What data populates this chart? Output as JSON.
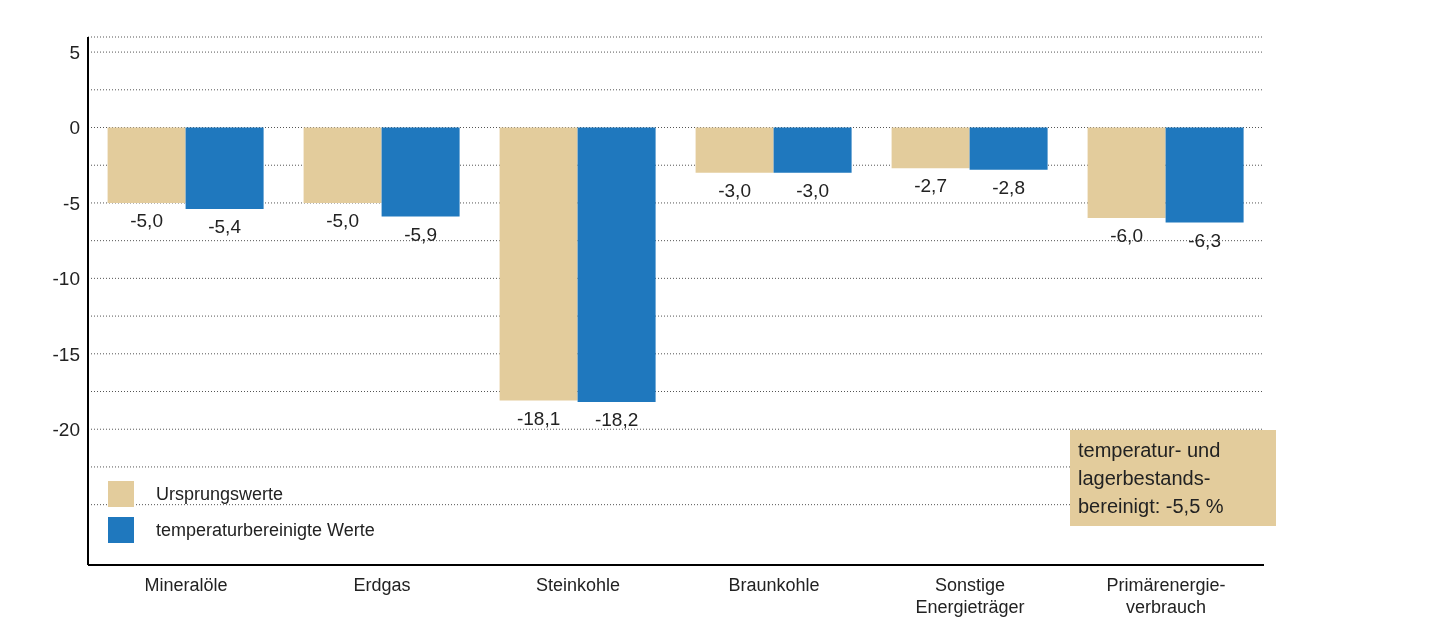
{
  "chart_data": {
    "type": "bar",
    "categories": [
      "Mineralöle",
      "Erdgas",
      "Steinkohle",
      "Braunkohle",
      "Sonstige Energieträger",
      "Primärenergie-verbrauch"
    ],
    "series": [
      {
        "name": "Ursprungswerte",
        "color": "#e3cc9c",
        "values": [
          -5.0,
          -5.0,
          -18.1,
          -3.0,
          -2.7,
          -6.0
        ],
        "value_labels": [
          "-5,0",
          "-5,0",
          "-18,1",
          "-3,0",
          "-2,7",
          "-6,0"
        ]
      },
      {
        "name": "temperaturbereinigte Werte",
        "color": "#1f78be",
        "values": [
          -5.4,
          -5.9,
          -18.2,
          -3.0,
          -2.8,
          -6.3
        ],
        "value_labels": [
          "-5,4",
          "-5,9",
          "-18,2",
          "-3,0",
          "-2,8",
          "-6,3"
        ]
      }
    ],
    "ylim": [
      -29,
      6
    ],
    "yticks": [
      5,
      {
        "value": 2.5,
        "label": null
      },
      0,
      {
        "value": -2.5,
        "label": null
      },
      -5,
      {
        "value": -7.5,
        "label": null
      },
      -10,
      {
        "value": -12.5,
        "label": null
      },
      -15,
      {
        "value": -17.5,
        "label": null
      },
      -20,
      {
        "value": -22.5,
        "label": null
      },
      {
        "value": -25,
        "label": null
      }
    ],
    "grid": "y",
    "legend": "bottom left",
    "annotations": [
      "temperatur- und lagerbestands-bereinigt: -5,5 %"
    ]
  }
}
